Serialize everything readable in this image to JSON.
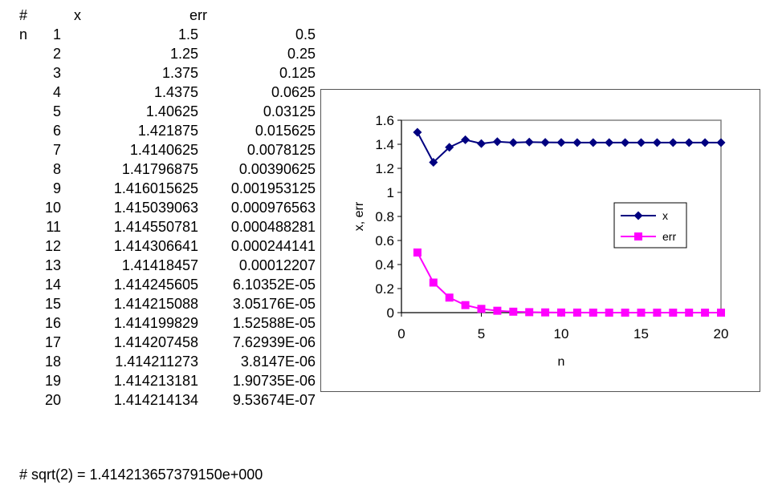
{
  "table": {
    "headers": {
      "n": "# n",
      "x": "x",
      "err": "err"
    },
    "rows": [
      {
        "n": "1",
        "x": "1.5",
        "err": "0.5"
      },
      {
        "n": "2",
        "x": "1.25",
        "err": "0.25"
      },
      {
        "n": "3",
        "x": "1.375",
        "err": "0.125"
      },
      {
        "n": "4",
        "x": "1.4375",
        "err": "0.0625"
      },
      {
        "n": "5",
        "x": "1.40625",
        "err": "0.03125"
      },
      {
        "n": "6",
        "x": "1.421875",
        "err": "0.015625"
      },
      {
        "n": "7",
        "x": "1.4140625",
        "err": "0.0078125"
      },
      {
        "n": "8",
        "x": "1.41796875",
        "err": "0.00390625"
      },
      {
        "n": "9",
        "x": "1.416015625",
        "err": "0.001953125"
      },
      {
        "n": "10",
        "x": "1.415039063",
        "err": "0.000976563"
      },
      {
        "n": "11",
        "x": "1.414550781",
        "err": "0.000488281"
      },
      {
        "n": "12",
        "x": "1.414306641",
        "err": "0.000244141"
      },
      {
        "n": "13",
        "x": "1.41418457",
        "err": "0.00012207"
      },
      {
        "n": "14",
        "x": "1.414245605",
        "err": "6.10352E-05"
      },
      {
        "n": "15",
        "x": "1.414215088",
        "err": "3.05176E-05"
      },
      {
        "n": "16",
        "x": "1.414199829",
        "err": "1.52588E-05"
      },
      {
        "n": "17",
        "x": "1.414207458",
        "err": "7.62939E-06"
      },
      {
        "n": "18",
        "x": "1.414211273",
        "err": "3.8147E-06"
      },
      {
        "n": "19",
        "x": "1.414213181",
        "err": "1.90735E-06"
      },
      {
        "n": "20",
        "x": "1.414214134",
        "err": "9.53674E-07"
      }
    ]
  },
  "footer": "# sqrt(2) = 1.414213657379150e+000",
  "chart_data": {
    "type": "line",
    "xlabel": "n",
    "ylabel": "x, err",
    "xlim": [
      0,
      20
    ],
    "ylim": [
      0,
      1.6
    ],
    "xticks": [
      0,
      5,
      10,
      15,
      20
    ],
    "yticks": [
      0,
      0.2,
      0.4,
      0.6,
      0.8,
      1,
      1.2,
      1.4,
      1.6
    ],
    "grid": false,
    "legend": "right",
    "x": [
      1,
      2,
      3,
      4,
      5,
      6,
      7,
      8,
      9,
      10,
      11,
      12,
      13,
      14,
      15,
      16,
      17,
      18,
      19,
      20
    ],
    "series": [
      {
        "name": "x",
        "color": "#000080",
        "marker": "diamond",
        "values": [
          1.5,
          1.25,
          1.375,
          1.4375,
          1.40625,
          1.421875,
          1.4140625,
          1.41796875,
          1.416015625,
          1.415039063,
          1.414550781,
          1.414306641,
          1.41418457,
          1.414245605,
          1.414215088,
          1.414199829,
          1.414207458,
          1.414211273,
          1.414213181,
          1.414214134
        ]
      },
      {
        "name": "err",
        "color": "#FF00FF",
        "marker": "square",
        "values": [
          0.5,
          0.25,
          0.125,
          0.0625,
          0.03125,
          0.015625,
          0.0078125,
          0.00390625,
          0.001953125,
          0.000976563,
          0.000488281,
          0.000244141,
          0.00012207,
          6.10352e-05,
          3.05176e-05,
          1.52588e-05,
          7.62939e-06,
          3.8147e-06,
          1.90735e-06,
          9.53674e-07
        ]
      }
    ]
  }
}
